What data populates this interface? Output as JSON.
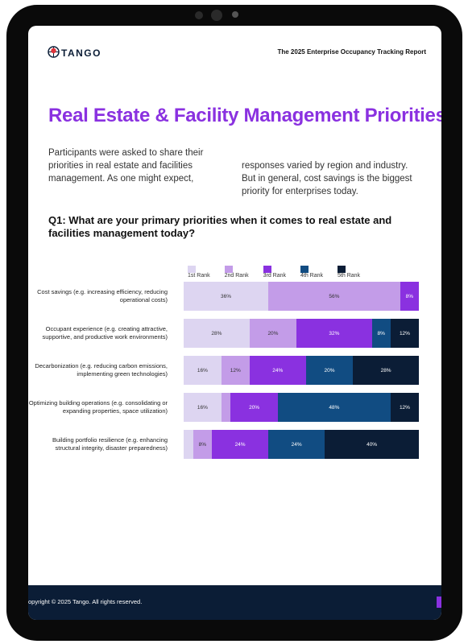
{
  "header": {
    "brand": "TANGO",
    "report": "The 2025 Enterprise Occupancy Tracking Report"
  },
  "title": "Real Estate & Facility Management Priorities",
  "intro": [
    "Participants were asked to share their priorities in real estate and facilities management. As one might expect,",
    "responses varied by region and industry. But in general, cost savings is the biggest priority for enterprises today."
  ],
  "question": "Q1: What are your primary priorities when it comes to real estate and facilities management today?",
  "chart_data": {
    "type": "stacked-bar-horizontal",
    "categories": [
      "Cost savings (e.g. increasing efficiency, reducing operational costs)",
      "Occupant experience (e.g. creating attractive, supportive, and productive work environments)",
      "Decarbonization (e.g. reducing carbon emissions, implementing green technologies)",
      "Optimizing building operations (e.g. consolidating or expanding properties, space utilization)",
      "Building portfolio resilience (e.g. enhancing structural integrity, disaster preparedness)"
    ],
    "xlim": [
      0,
      100
    ],
    "series": [
      {
        "name": "1st Rank",
        "color": "#ddd5f1",
        "values": [
          36,
          28,
          16,
          16,
          4
        ],
        "value_labels": [
          "36%",
          "28%",
          "16%",
          "16%",
          null
        ]
      },
      {
        "name": "2nd Rank",
        "color": "#c39ce8",
        "values": [
          56,
          20,
          12,
          4,
          8
        ],
        "value_labels": [
          "56%",
          "20%",
          "12%",
          null,
          "8%"
        ]
      },
      {
        "name": "3rd Rank",
        "color": "#8a31e0",
        "values": [
          8,
          32,
          24,
          20,
          24
        ],
        "value_labels": [
          "8%",
          "32%",
          "24%",
          "20%",
          "24%"
        ]
      },
      {
        "name": "4th Rank",
        "color": "#114c82",
        "values": [
          0,
          8,
          20,
          48,
          24
        ],
        "value_labels": [
          null,
          "8%",
          "20%",
          "48%",
          "24%"
        ]
      },
      {
        "name": "5th Rank",
        "color": "#0b1d36",
        "values": [
          0,
          12,
          28,
          12,
          40
        ],
        "value_labels": [
          null,
          "12%",
          "28%",
          "12%",
          "40%"
        ]
      }
    ]
  },
  "footer": "opyright © 2025 Tango. All rights reserved."
}
